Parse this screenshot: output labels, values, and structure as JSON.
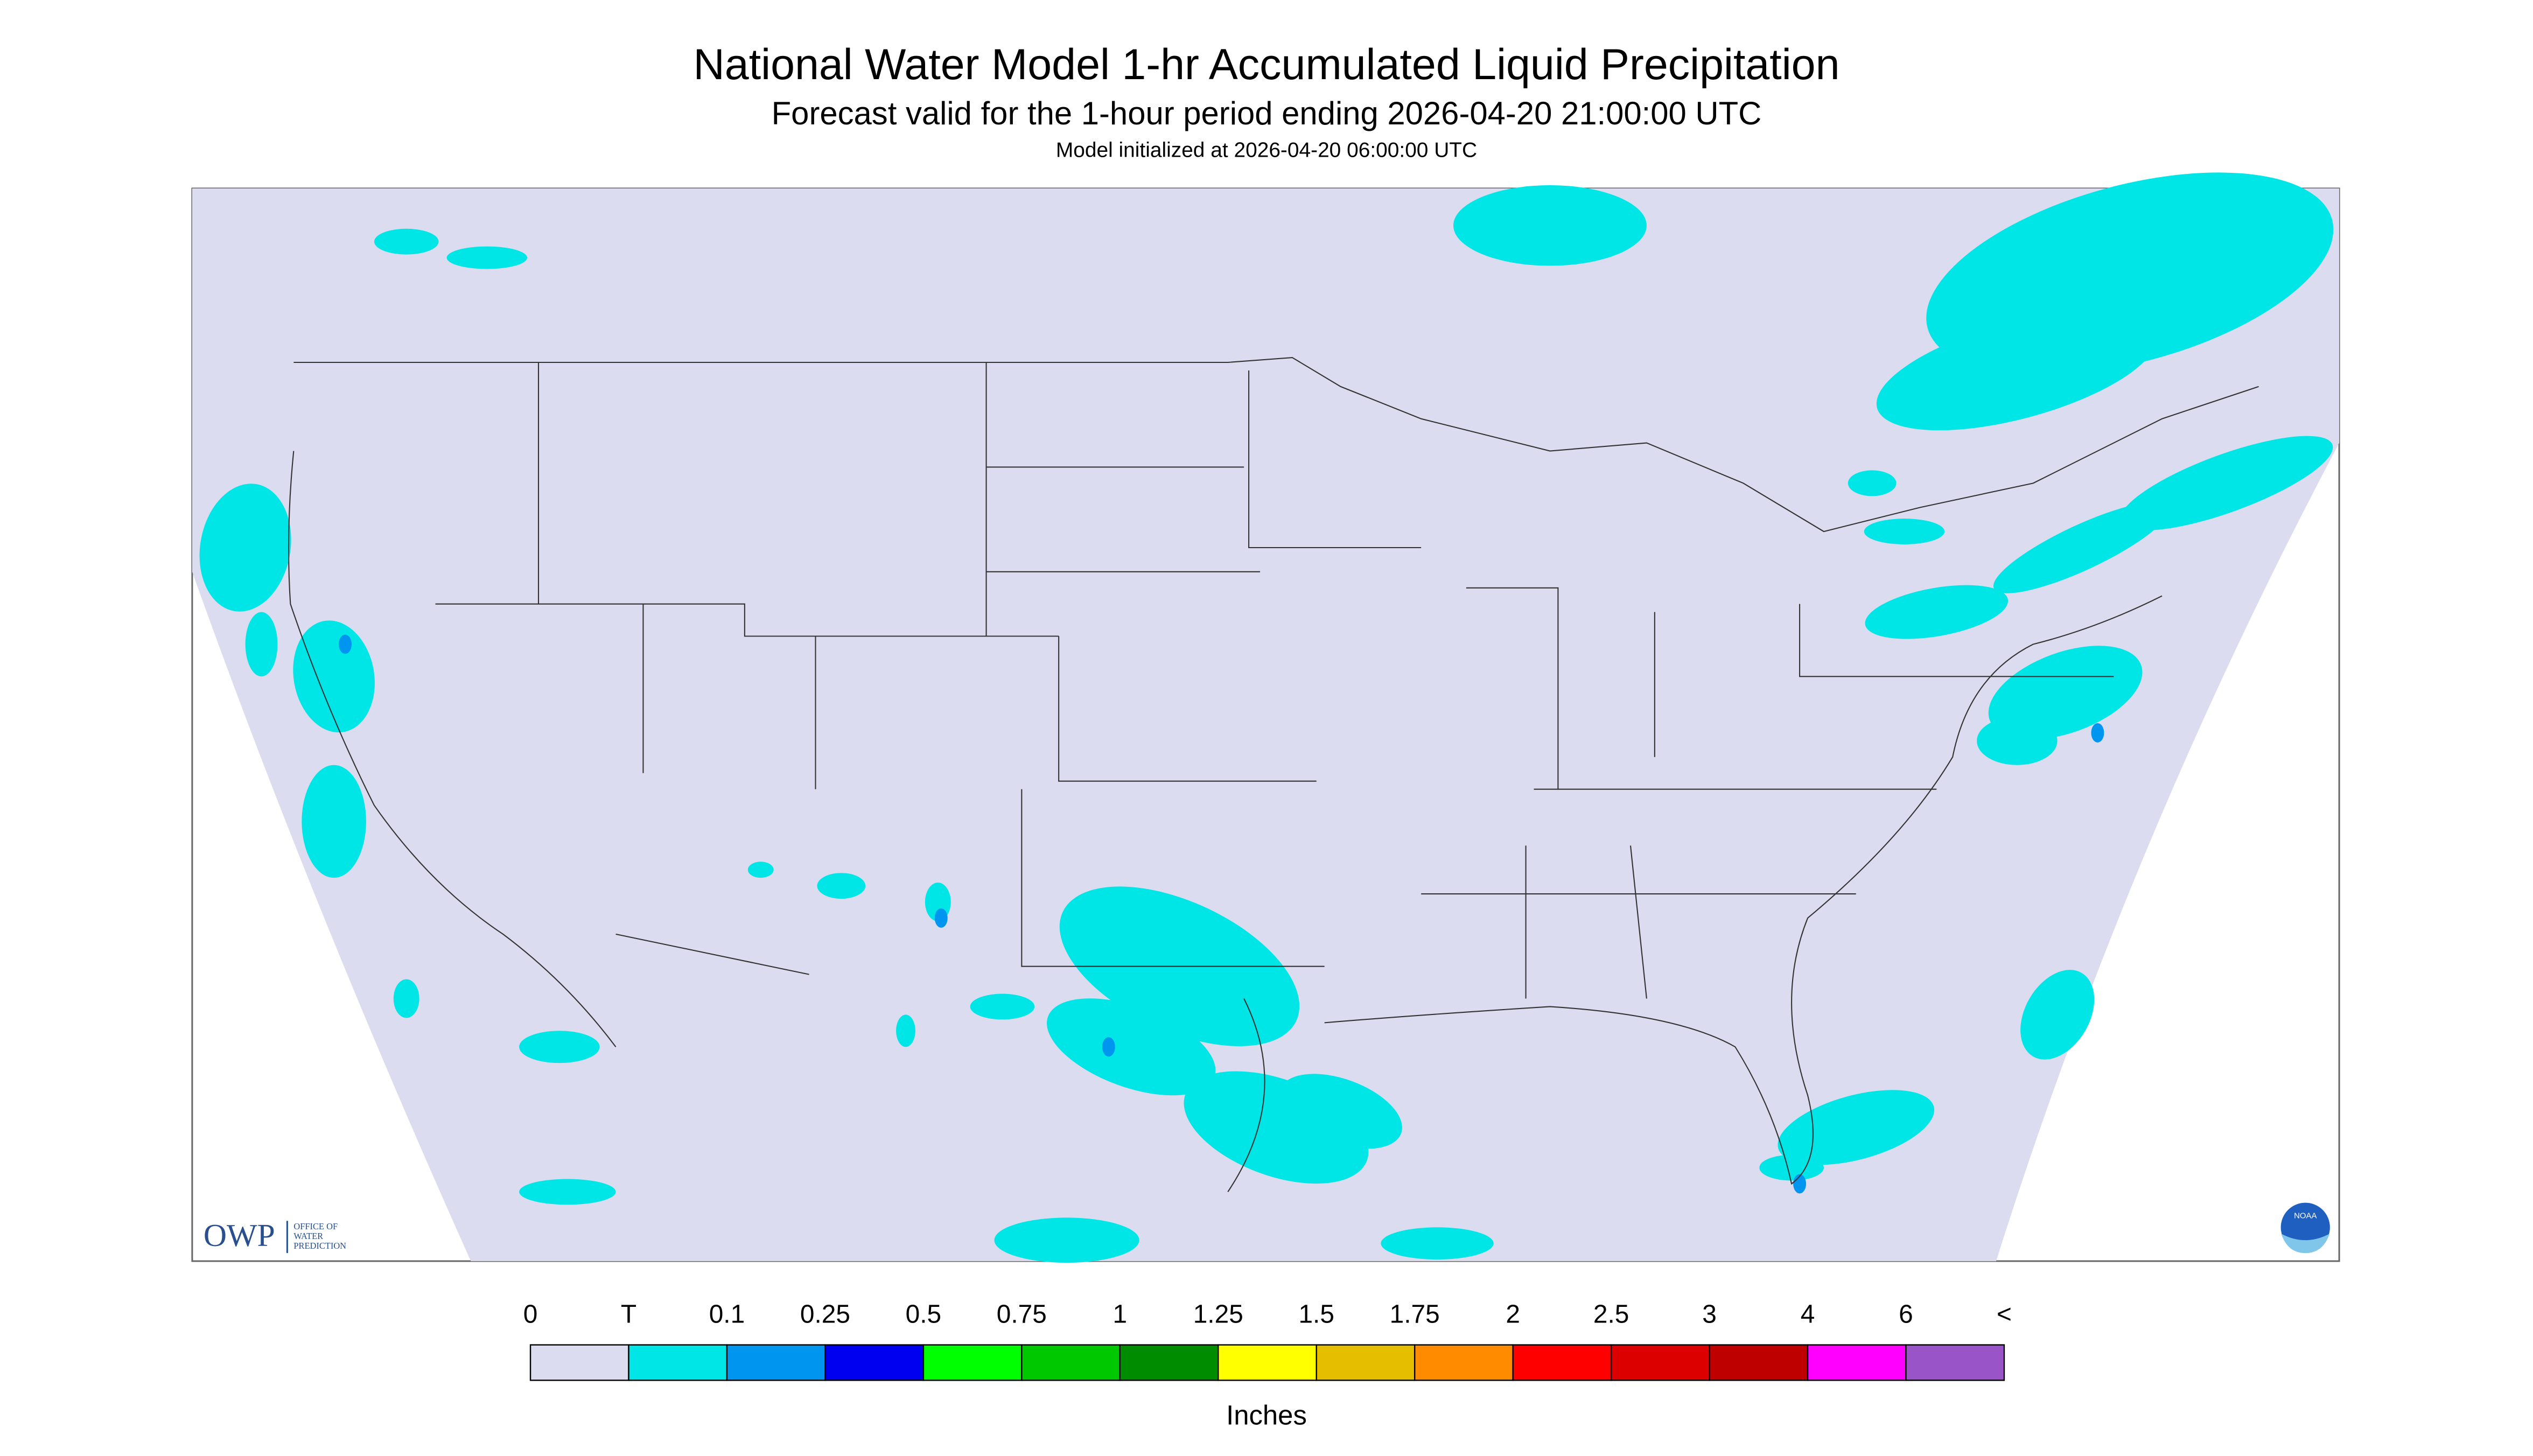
{
  "header": {
    "title": "National Water Model 1-hr Accumulated Liquid Precipitation",
    "subtitle": "Forecast valid for the 1-hour period ending 2026-04-20 21:00:00 UTC",
    "init": "Model initialized at 2026-04-20 06:00:00 UTC"
  },
  "legend": {
    "labels": [
      "0",
      "T",
      "0.1",
      "0.25",
      "0.5",
      "0.75",
      "1",
      "1.25",
      "1.5",
      "1.75",
      "2",
      "2.5",
      "3",
      "4",
      "6",
      "<"
    ],
    "colors": [
      "#dcdcf0",
      "#00e6e6",
      "#0096f0",
      "#0000f0",
      "#00ff00",
      "#00c800",
      "#008c00",
      "#ffff00",
      "#e6be00",
      "#ff8c00",
      "#ff0000",
      "#dc0000",
      "#be0000",
      "#ff00ff",
      "#9955c8"
    ],
    "unit": "Inches"
  },
  "logo": {
    "abbr": "OWP",
    "lines": [
      "OFFICE OF",
      "WATER",
      "PREDICTION"
    ],
    "noaa": "NOAA"
  }
}
